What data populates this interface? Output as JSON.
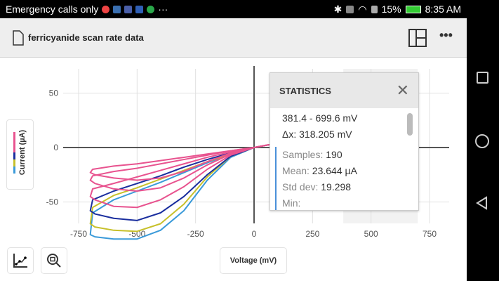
{
  "status_bar": {
    "carrier": "Emergency calls only",
    "more": "···",
    "battery": "15%",
    "time": "8:35 AM"
  },
  "toolbar": {
    "title": "ferricyanide scan rate data"
  },
  "legend": {
    "label": "Current (µA)"
  },
  "x_axis_button": "Voltage (mV)",
  "stats": {
    "title": "STATISTICS",
    "range": "381.4 - 699.6 mV",
    "dx": "Δx: 318.205 mV",
    "samples_k": "Samples:",
    "samples_v": " 190",
    "mean_k": "Mean:",
    "mean_v": " 23.644 µA",
    "std_k": "Std dev:",
    "std_v": " 19.298",
    "min_k": "Min:"
  },
  "chart_data": {
    "type": "line",
    "xlabel": "Voltage (mV)",
    "ylabel": "Current (µA)",
    "xlim": [
      -850,
      850
    ],
    "ylim": [
      -90,
      55
    ],
    "xticks": [
      -750,
      -500,
      -250,
      0,
      250,
      500,
      750
    ],
    "yticks": [
      50,
      0,
      -50
    ],
    "selection": [
      381.4,
      699.6
    ],
    "series": [
      {
        "color": "#3a9ad9",
        "points": [
          [
            100,
            4
          ],
          [
            0,
            0
          ],
          [
            -100,
            -9
          ],
          [
            -200,
            -30
          ],
          [
            -300,
            -58
          ],
          [
            -400,
            -76
          ],
          [
            -500,
            -84
          ],
          [
            -600,
            -84
          ],
          [
            -680,
            -82
          ],
          [
            -700,
            -80
          ],
          [
            -690,
            -60
          ],
          [
            -600,
            -48
          ],
          [
            -500,
            -40
          ],
          [
            -400,
            -32
          ],
          [
            -300,
            -23
          ],
          [
            -200,
            -14
          ],
          [
            -100,
            -6
          ],
          [
            0,
            0
          ],
          [
            100,
            4
          ]
        ]
      },
      {
        "color": "#c7c02a",
        "points": [
          [
            100,
            4
          ],
          [
            0,
            0
          ],
          [
            -100,
            -8
          ],
          [
            -200,
            -27
          ],
          [
            -300,
            -52
          ],
          [
            -400,
            -70
          ],
          [
            -500,
            -77
          ],
          [
            -600,
            -76
          ],
          [
            -680,
            -73
          ],
          [
            -700,
            -70
          ],
          [
            -690,
            -55
          ],
          [
            -600,
            -44
          ],
          [
            -500,
            -37
          ],
          [
            -400,
            -29
          ],
          [
            -300,
            -21
          ],
          [
            -200,
            -13
          ],
          [
            -100,
            -6
          ],
          [
            0,
            0
          ],
          [
            100,
            4
          ]
        ]
      },
      {
        "color": "#1a2e9e",
        "points": [
          [
            100,
            4
          ],
          [
            0,
            0
          ],
          [
            -100,
            -8
          ],
          [
            -200,
            -25
          ],
          [
            -300,
            -45
          ],
          [
            -400,
            -60
          ],
          [
            -500,
            -67
          ],
          [
            -600,
            -65
          ],
          [
            -680,
            -61
          ],
          [
            -700,
            -58
          ],
          [
            -690,
            -48
          ],
          [
            -600,
            -40
          ],
          [
            -500,
            -33
          ],
          [
            -400,
            -26
          ],
          [
            -300,
            -18
          ],
          [
            -200,
            -11
          ],
          [
            -100,
            -5
          ],
          [
            0,
            0
          ],
          [
            100,
            4
          ]
        ]
      },
      {
        "color": "#e8538f",
        "points": [
          [
            100,
            4
          ],
          [
            0,
            0
          ],
          [
            -100,
            -7
          ],
          [
            -200,
            -20
          ],
          [
            -300,
            -36
          ],
          [
            -400,
            -48
          ],
          [
            -500,
            -55
          ],
          [
            -600,
            -54
          ],
          [
            -680,
            -48
          ],
          [
            -700,
            -45
          ],
          [
            -690,
            -38
          ],
          [
            -600,
            -33
          ],
          [
            -500,
            -27
          ],
          [
            -400,
            -21
          ],
          [
            -300,
            -15
          ],
          [
            -200,
            -9
          ],
          [
            -100,
            -4
          ],
          [
            0,
            0
          ],
          [
            100,
            4
          ]
        ]
      },
      {
        "color": "#e8538f",
        "points": [
          [
            100,
            4
          ],
          [
            0,
            0
          ],
          [
            -100,
            -6
          ],
          [
            -200,
            -16
          ],
          [
            -300,
            -28
          ],
          [
            -400,
            -37
          ],
          [
            -500,
            -40
          ],
          [
            -600,
            -38
          ],
          [
            -680,
            -33
          ],
          [
            -700,
            -30
          ],
          [
            -690,
            -26
          ],
          [
            -600,
            -22
          ],
          [
            -500,
            -19
          ],
          [
            -400,
            -15
          ],
          [
            -300,
            -11
          ],
          [
            -200,
            -7
          ],
          [
            -100,
            -3
          ],
          [
            0,
            0
          ],
          [
            100,
            4
          ]
        ]
      },
      {
        "color": "#e8538f",
        "points": [
          [
            100,
            4
          ],
          [
            0,
            0
          ],
          [
            -100,
            -5
          ],
          [
            -200,
            -13
          ],
          [
            -300,
            -22
          ],
          [
            -400,
            -28
          ],
          [
            -500,
            -30
          ],
          [
            -600,
            -28
          ],
          [
            -680,
            -25
          ],
          [
            -700,
            -23
          ],
          [
            -690,
            -20
          ],
          [
            -600,
            -17
          ],
          [
            -500,
            -15
          ],
          [
            -400,
            -12
          ],
          [
            -300,
            -9
          ],
          [
            -200,
            -6
          ],
          [
            -100,
            -3
          ],
          [
            0,
            0
          ],
          [
            100,
            4
          ]
        ]
      }
    ]
  }
}
